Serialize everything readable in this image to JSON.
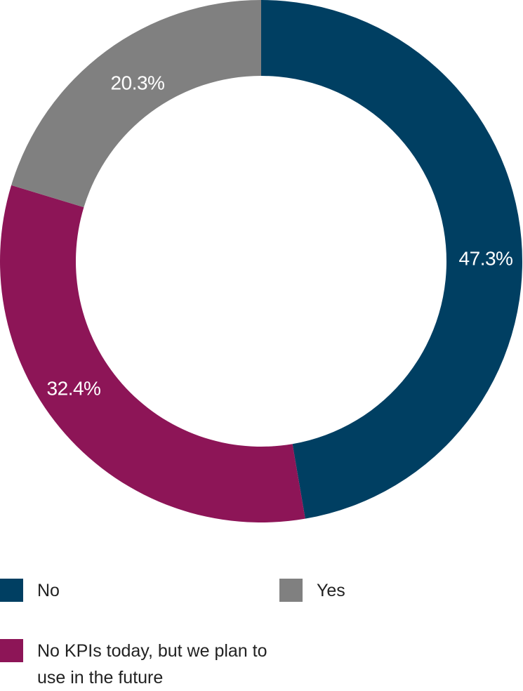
{
  "chart_data": {
    "type": "pie",
    "variant": "donut",
    "slices": [
      {
        "label": "No",
        "value": 47.3,
        "display": "47.3%",
        "color": "#003f62"
      },
      {
        "label": "No KPIs today, but we plan to use in the future",
        "value": 32.4,
        "display": "32.4%",
        "color": "#8d1557"
      },
      {
        "label": "Yes",
        "value": 20.3,
        "display": "20.3%",
        "color": "#808080"
      }
    ],
    "start": "top",
    "direction": "clockwise",
    "legend_placement": "bottom"
  },
  "legend": {
    "no": "No",
    "yes": "Yes",
    "plan": "No KPIs today, but we plan to use in the future"
  }
}
